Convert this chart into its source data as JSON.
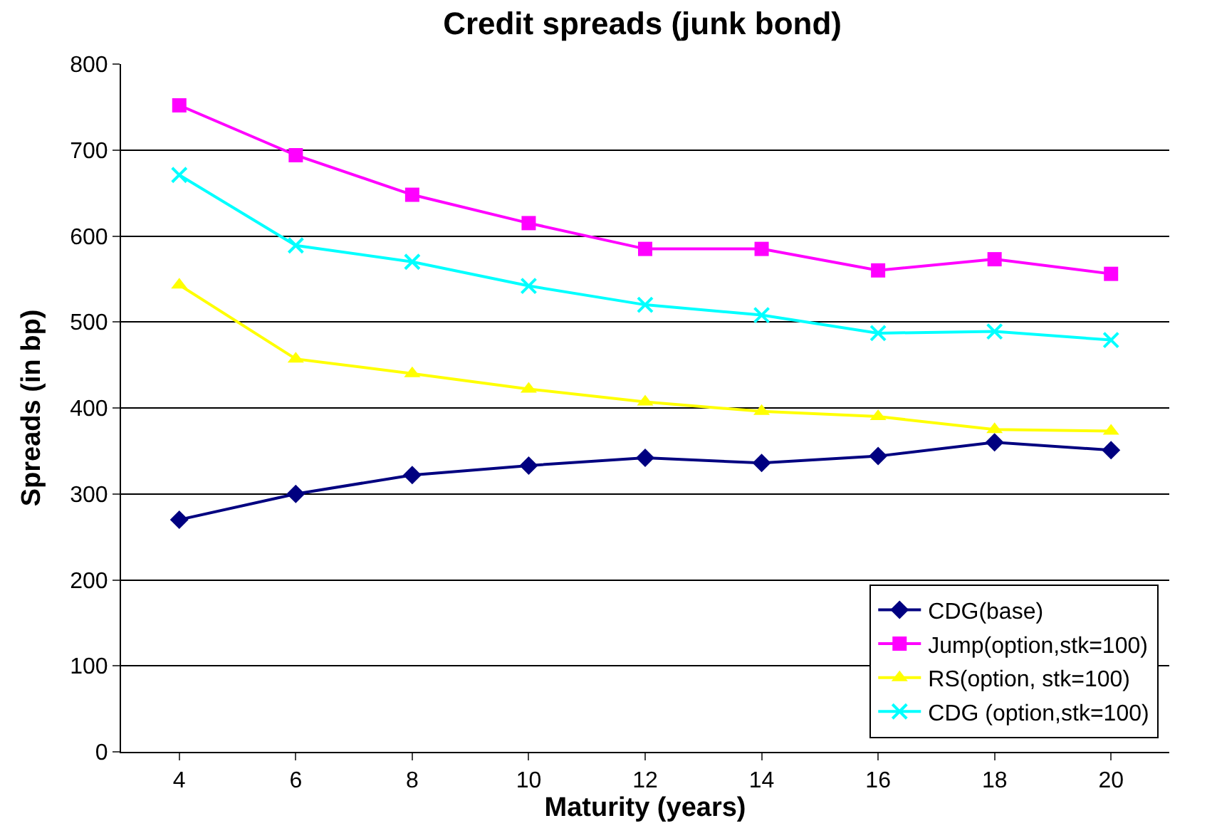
{
  "chart_data": {
    "type": "line",
    "title": "Credit spreads (junk bond)",
    "xlabel": "Maturity (years)",
    "ylabel": "Spreads (in bp)",
    "categories": [
      "4",
      "6",
      "8",
      "10",
      "12",
      "14",
      "16",
      "18",
      "20"
    ],
    "series": [
      {
        "name": "CDG(base)",
        "color": "#000080",
        "marker": "diamond",
        "values": [
          270,
          300,
          322,
          333,
          342,
          336,
          344,
          360,
          351
        ]
      },
      {
        "name": "Jump(option,stk=100)",
        "color": "#ff00ff",
        "marker": "square",
        "values": [
          752,
          694,
          648,
          615,
          585,
          585,
          560,
          573,
          556
        ]
      },
      {
        "name": "RS(option, stk=100)",
        "color": "#ffff00",
        "marker": "triangle",
        "values": [
          543,
          457,
          440,
          422,
          407,
          396,
          390,
          375,
          373
        ]
      },
      {
        "name": "CDG (option,stk=100)",
        "color": "#00ffff",
        "marker": "cross",
        "values": [
          671,
          589,
          570,
          542,
          520,
          508,
          487,
          489,
          479
        ]
      }
    ],
    "ylim": [
      0,
      800
    ],
    "yticks": [
      0,
      100,
      200,
      300,
      400,
      500,
      600,
      700,
      800
    ],
    "grid": "y",
    "legend": "bottom right"
  }
}
